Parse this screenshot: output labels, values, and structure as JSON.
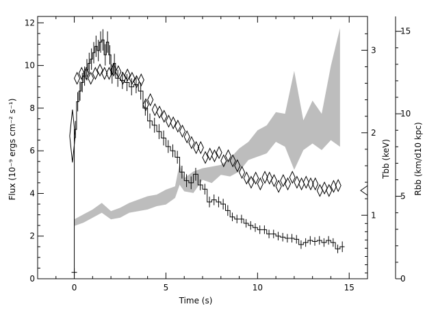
{
  "chart_data": {
    "type": "line",
    "xlabel": "Time (s)",
    "ylabel_left": "Flux (10⁻⁹ ergs cm⁻² s⁻¹)",
    "ylabel_right_T": "Tbb (keV)",
    "ylabel_right_R": "Rbb (km/d10 kpc)",
    "xlim": [
      -2,
      16
    ],
    "ylim": [
      0,
      12.3
    ],
    "x_ticks": [
      "0",
      "5",
      "10",
      "15"
    ],
    "y_ticks": [
      "0",
      "2",
      "4",
      "6",
      "8",
      "10",
      "12"
    ],
    "t_ticks": [
      "1",
      "2",
      "3"
    ],
    "r_ticks": [
      "0",
      "5",
      "10",
      "15"
    ],
    "t_axis": {
      "min": 0.23,
      "max": 3.41
    },
    "r_axis": {
      "min": 0,
      "max": 15.9
    },
    "series": [
      {
        "name": "Flux",
        "style": "histogram",
        "x": [
          0,
          0.125,
          0.25,
          0.375,
          0.5,
          0.625,
          0.75,
          0.875,
          1.0,
          1.125,
          1.25,
          1.375,
          1.5,
          1.625,
          1.75,
          1.875,
          2.0,
          2.125,
          2.25,
          2.5,
          2.75,
          3.0,
          3.25,
          3.5,
          3.75,
          4.0,
          4.25,
          4.5,
          4.75,
          5.0,
          5.25,
          5.5,
          5.75,
          6.0,
          6.25,
          6.5,
          6.75,
          7.0,
          7.25,
          7.5,
          7.75,
          8.0,
          8.25,
          8.5,
          8.75,
          9.0,
          9.25,
          9.5,
          9.75,
          10.0,
          10.25,
          10.5,
          10.75,
          11.0,
          11.25,
          11.5,
          11.75,
          12.0,
          12.25,
          12.5,
          12.75,
          13.0,
          13.25,
          13.5,
          13.75,
          14.0,
          14.25,
          14.5
        ],
        "values": [
          7.0,
          8.3,
          8.8,
          9.2,
          9.5,
          9.8,
          10.1,
          10.3,
          10.6,
          10.9,
          10.7,
          11.1,
          11.2,
          10.5,
          11.1,
          10.5,
          9.6,
          10.1,
          9.4,
          9.3,
          9.2,
          9.0,
          9.1,
          8.8,
          8.0,
          7.4,
          7.2,
          6.9,
          6.6,
          6.2,
          6.0,
          5.7,
          5.0,
          4.6,
          4.5,
          4.9,
          4.4,
          4.2,
          3.6,
          3.7,
          3.6,
          3.5,
          3.2,
          2.9,
          2.8,
          2.8,
          2.6,
          2.5,
          2.4,
          2.3,
          2.3,
          2.1,
          2.1,
          2.0,
          1.95,
          1.9,
          1.9,
          1.85,
          1.6,
          1.7,
          1.8,
          1.75,
          1.8,
          1.7,
          1.8,
          1.7,
          1.4,
          1.5
        ],
        "errors": [
          0.4,
          0.45,
          0.45,
          0.45,
          0.45,
          0.5,
          0.5,
          0.5,
          0.5,
          0.5,
          0.5,
          0.5,
          0.5,
          0.5,
          0.5,
          0.45,
          0.45,
          0.45,
          0.4,
          0.4,
          0.4,
          0.4,
          0.4,
          0.4,
          0.35,
          0.35,
          0.35,
          0.35,
          0.35,
          0.3,
          0.3,
          0.3,
          0.3,
          0.3,
          0.3,
          0.3,
          0.25,
          0.25,
          0.25,
          0.25,
          0.25,
          0.25,
          0.25,
          0.2,
          0.2,
          0.2,
          0.2,
          0.2,
          0.2,
          0.2,
          0.2,
          0.2,
          0.2,
          0.2,
          0.2,
          0.2,
          0.2,
          0.2,
          0.2,
          0.2,
          0.2,
          0.2,
          0.2,
          0.2,
          0.2,
          0.2,
          0.2,
          0.25
        ]
      },
      {
        "name": "Tbb",
        "style": "diamonds",
        "x": [
          -0.1,
          0.15,
          0.4,
          0.65,
          0.9,
          1.15,
          1.4,
          1.65,
          1.9,
          2.15,
          2.4,
          2.65,
          2.9,
          3.15,
          3.4,
          3.65,
          3.9,
          4.15,
          4.4,
          4.65,
          4.9,
          5.15,
          5.4,
          5.65,
          5.9,
          6.15,
          6.4,
          6.65,
          6.9,
          7.15,
          7.4,
          7.65,
          7.9,
          8.15,
          8.4,
          8.65,
          8.9,
          9.15,
          9.4,
          9.65,
          9.9,
          10.15,
          10.4,
          10.65,
          10.9,
          11.15,
          11.4,
          11.65,
          11.9,
          12.15,
          12.4,
          12.65,
          12.9,
          13.15,
          13.4,
          13.65,
          13.9,
          14.15,
          14.4
        ],
        "values": [
          1.96,
          2.66,
          2.72,
          2.72,
          2.66,
          2.72,
          2.76,
          2.72,
          2.72,
          2.76,
          2.74,
          2.66,
          2.7,
          2.66,
          2.62,
          2.64,
          2.34,
          2.4,
          2.28,
          2.25,
          2.2,
          2.14,
          2.12,
          2.08,
          2.02,
          1.95,
          1.88,
          1.82,
          1.82,
          1.7,
          1.74,
          1.72,
          1.76,
          1.66,
          1.72,
          1.66,
          1.6,
          1.52,
          1.45,
          1.4,
          1.45,
          1.38,
          1.46,
          1.45,
          1.42,
          1.35,
          1.42,
          1.38,
          1.46,
          1.4,
          1.38,
          1.4,
          1.38,
          1.38,
          1.3,
          1.33,
          1.3,
          1.35,
          1.36
        ],
        "errors": [
          0.32,
          0.07,
          0.07,
          0.07,
          0.07,
          0.07,
          0.07,
          0.07,
          0.07,
          0.07,
          0.07,
          0.07,
          0.07,
          0.07,
          0.07,
          0.07,
          0.07,
          0.07,
          0.07,
          0.07,
          0.07,
          0.07,
          0.07,
          0.07,
          0.07,
          0.07,
          0.07,
          0.07,
          0.07,
          0.07,
          0.07,
          0.07,
          0.07,
          0.07,
          0.07,
          0.07,
          0.07,
          0.07,
          0.07,
          0.07,
          0.07,
          0.07,
          0.07,
          0.07,
          0.07,
          0.07,
          0.07,
          0.07,
          0.07,
          0.07,
          0.07,
          0.07,
          0.07,
          0.07,
          0.07,
          0.07,
          0.07,
          0.07,
          0.07
        ]
      },
      {
        "name": "Rbb",
        "style": "shaded band",
        "x": [
          0.0,
          0.5,
          1.0,
          1.5,
          2.0,
          2.5,
          3.0,
          3.5,
          4.0,
          4.5,
          5.0,
          5.5,
          5.75,
          6.0,
          6.5,
          7.0,
          7.5,
          8.0,
          8.5,
          9.0,
          9.5,
          10.0,
          10.5,
          11.0,
          11.5,
          12.0,
          12.5,
          13.0,
          13.5,
          14.0,
          14.5
        ],
        "lower": [
          3.2,
          3.4,
          3.7,
          4.0,
          3.6,
          3.7,
          4.0,
          4.1,
          4.2,
          4.4,
          4.5,
          4.9,
          5.7,
          5.3,
          5.2,
          6.0,
          5.8,
          6.3,
          6.2,
          6.5,
          7.2,
          7.4,
          7.6,
          8.3,
          8.0,
          6.6,
          7.8,
          8.2,
          7.8,
          8.4,
          8.0
        ],
        "upper": [
          3.6,
          3.9,
          4.2,
          4.6,
          4.1,
          4.3,
          4.6,
          4.8,
          5.0,
          5.1,
          5.4,
          5.6,
          7.0,
          6.1,
          6.5,
          6.7,
          6.8,
          6.9,
          7.3,
          7.9,
          8.3,
          9.0,
          9.3,
          10.1,
          10.0,
          12.6,
          9.6,
          10.8,
          10.0,
          12.9,
          15.2
        ]
      }
    ]
  }
}
